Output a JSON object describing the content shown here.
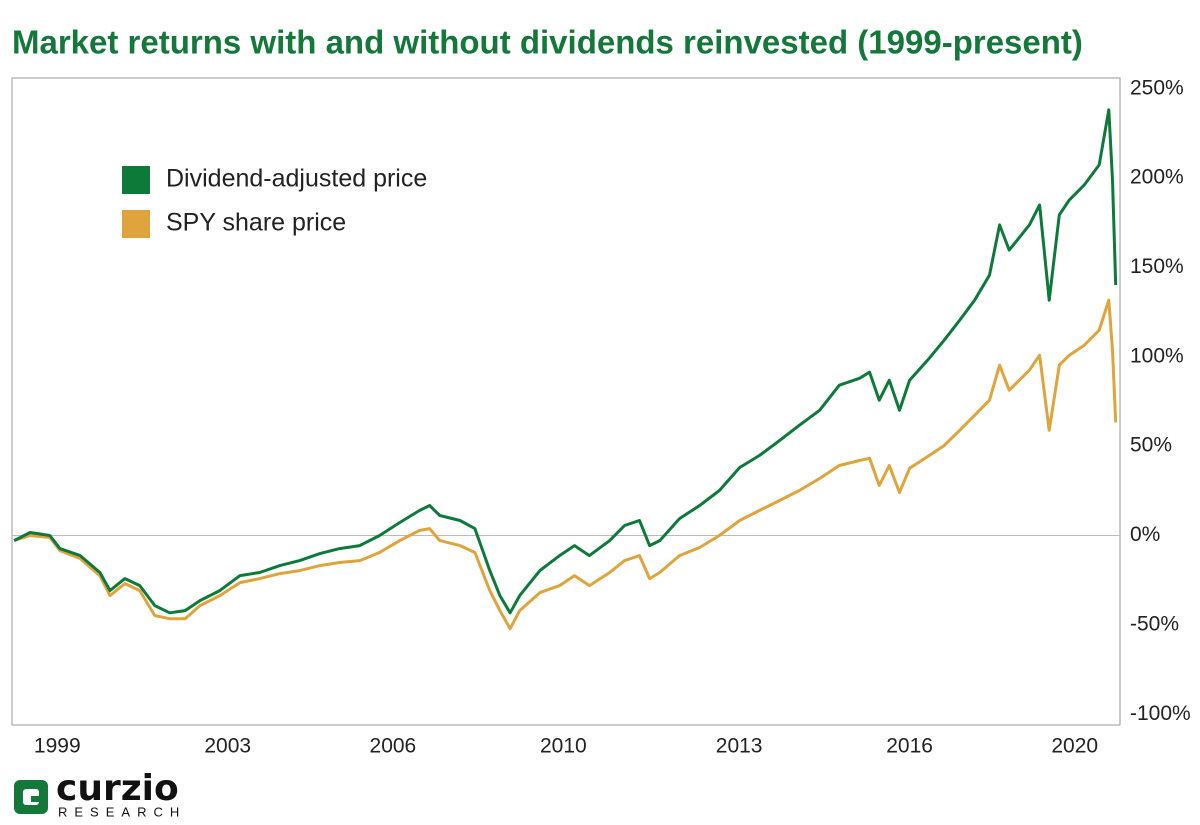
{
  "chart_data": {
    "type": "line",
    "title": "Market returns with and without dividends reinvested (1999-present)",
    "x": [
      1999.59,
      1999.89,
      2000.26,
      2000.45,
      2000.83,
      2001.2,
      2001.39,
      2001.67,
      2001.95,
      2002.23,
      2002.51,
      2002.8,
      2003.08,
      2003.45,
      2003.83,
      2004.2,
      2004.58,
      2004.95,
      2005.33,
      2005.7,
      2006.08,
      2006.45,
      2006.83,
      2007.2,
      2007.39,
      2007.58,
      2007.96,
      2008.24,
      2008.52,
      2008.71,
      2008.9,
      2009.08,
      2009.46,
      2009.83,
      2010.11,
      2010.39,
      2010.77,
      2011.05,
      2011.33,
      2011.52,
      2011.71,
      2012.08,
      2012.46,
      2012.83,
      2013.21,
      2013.58,
      2013.96,
      2014.33,
      2014.71,
      2015.08,
      2015.46,
      2015.65,
      2015.83,
      2016.02,
      2016.21,
      2016.4,
      2016.77,
      2017.05,
      2017.34,
      2017.62,
      2017.9,
      2018.09,
      2018.27,
      2018.65,
      2018.84,
      2019.02,
      2019.21,
      2019.4,
      2019.68,
      2019.96,
      2020.14,
      2020.21,
      2020.27
    ],
    "series": [
      {
        "name": "Dividend-adjusted price",
        "color": "#0e7a3a",
        "values": [
          -2.8,
          1.7,
          0,
          -7.3,
          -11.2,
          -20.7,
          -30.8,
          -24.1,
          -28,
          -39.2,
          -43.2,
          -42,
          -36.4,
          -30.8,
          -22.4,
          -20.7,
          -16.8,
          -14,
          -10.1,
          -7.3,
          -5.6,
          0,
          7.3,
          14,
          16.8,
          11.2,
          8.4,
          3.9,
          -19.6,
          -33.6,
          -43.2,
          -33.6,
          -19.6,
          -11.2,
          -5.6,
          -11.2,
          -2.8,
          5.6,
          8.4,
          -5.6,
          -2.8,
          9.5,
          16.8,
          25.2,
          38.1,
          44.8,
          53.2,
          61.7,
          70.1,
          84.1,
          88,
          91.4,
          75.7,
          86.9,
          70.1,
          86.9,
          99.2,
          109.3,
          120.5,
          131.7,
          145.7,
          173.8,
          159.7,
          173.8,
          185,
          131.7,
          179.4,
          187.8,
          196.2,
          207.4,
          238.2,
          199,
          140.1
        ]
      },
      {
        "name": "SPY share price",
        "color": "#e0a43c",
        "values": [
          -2.8,
          0,
          -1.1,
          -8.4,
          -12.9,
          -22.4,
          -33.6,
          -26.9,
          -30.8,
          -44.8,
          -46.5,
          -46.5,
          -39.2,
          -33.6,
          -26.3,
          -24.1,
          -21.3,
          -19.6,
          -16.8,
          -15.1,
          -14,
          -9.5,
          -2.8,
          2.8,
          3.9,
          -2.8,
          -5.6,
          -9.5,
          -30.8,
          -42,
          -52.1,
          -42,
          -31.9,
          -28,
          -22.4,
          -28,
          -20.7,
          -14,
          -11.2,
          -24.1,
          -20.7,
          -11.2,
          -6.7,
          0,
          8.4,
          14,
          19.6,
          25.2,
          31.9,
          39.2,
          42,
          43.2,
          28,
          39.2,
          24.1,
          37.6,
          44.8,
          50.4,
          58.9,
          67.3,
          75.7,
          95.3,
          81.3,
          92.5,
          100.9,
          58.9,
          95.3,
          100.9,
          106.5,
          114.9,
          131.7,
          103.7,
          63.3
        ]
      }
    ],
    "xlim": [
      1999.55,
      2020.35
    ],
    "xticks": [
      {
        "value": 2000.4,
        "label": "1999"
      },
      {
        "value": 2003.6,
        "label": "2003"
      },
      {
        "value": 2006.7,
        "label": "2006"
      },
      {
        "value": 2009.9,
        "label": "2010"
      },
      {
        "value": 2013.2,
        "label": "2013"
      },
      {
        "value": 2016.4,
        "label": "2016"
      },
      {
        "value": 2019.5,
        "label": "2020"
      }
    ],
    "ylim": [
      -106,
      256
    ],
    "yticks": [
      {
        "value": -100,
        "label": "-100%"
      },
      {
        "value": -50,
        "label": "-50%"
      },
      {
        "value": 0,
        "label": "0%"
      },
      {
        "value": 50,
        "label": "50%"
      },
      {
        "value": 100,
        "label": "100%"
      },
      {
        "value": 150,
        "label": "150%"
      },
      {
        "value": 200,
        "label": "200%"
      },
      {
        "value": 250,
        "label": "250%"
      }
    ],
    "zero_line": true,
    "legend": "upper left"
  },
  "logo": {
    "name": "curzio",
    "tagline": "RESEARCH"
  }
}
